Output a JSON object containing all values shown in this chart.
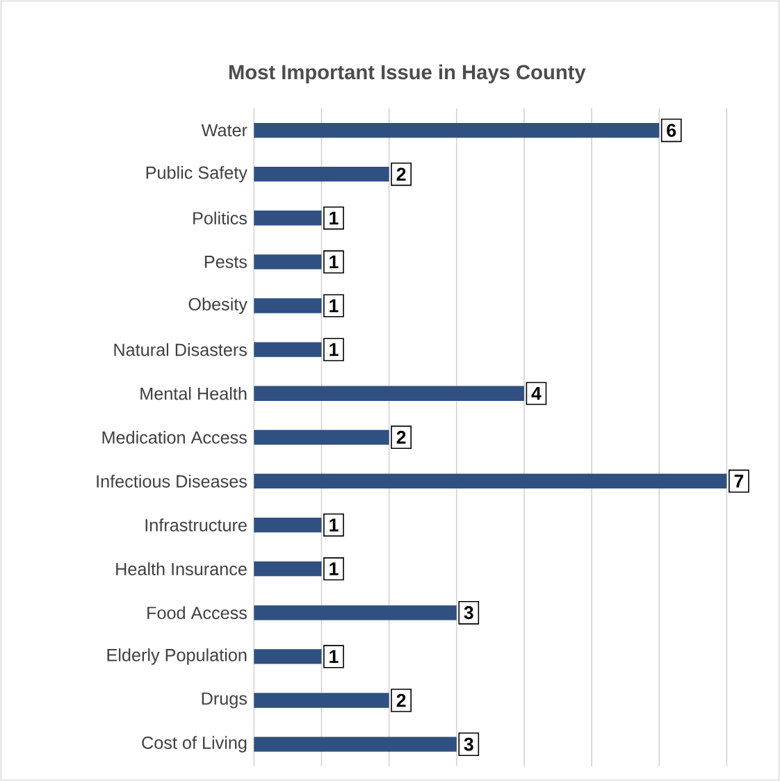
{
  "chart_data": {
    "type": "bar",
    "orientation": "horizontal",
    "title": "Most Important Issue in Hays County",
    "categories": [
      "Water",
      "Public Safety",
      "Politics",
      "Pests",
      "Obesity",
      "Natural Disasters",
      "Mental Health",
      "Medication Access",
      "Infectious Diseases",
      "Infrastructure",
      "Health Insurance",
      "Food Access",
      "Elderly Population",
      "Drugs",
      "Cost of Living"
    ],
    "values": [
      6,
      2,
      1,
      1,
      1,
      1,
      4,
      2,
      7,
      1,
      1,
      3,
      1,
      2,
      3
    ],
    "color": "#2f5080",
    "xlim": [
      0,
      7
    ],
    "xticks": [
      {
        "value": 0,
        "label": null
      },
      {
        "value": 1,
        "label": null
      },
      {
        "value": 2,
        "label": null
      },
      {
        "value": 3,
        "label": null
      },
      {
        "value": 4,
        "label": null
      },
      {
        "value": 5,
        "label": null
      },
      {
        "value": 6,
        "label": null
      },
      {
        "value": 7,
        "label": null
      }
    ],
    "tick_labels": "y",
    "grid": "x",
    "data_labels": true
  }
}
